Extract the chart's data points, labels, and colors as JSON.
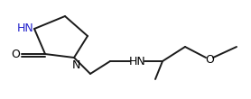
{
  "bg_color": "#ffffff",
  "line_color": "#1a1a1a",
  "text_color": "#000000",
  "hn_color": "#2222cc",
  "label_HN_ring": "HN",
  "label_N_ring": "N",
  "label_O_carbonyl": "O",
  "label_HN_chain": "HN",
  "label_O_ether": "O",
  "figsize": [
    2.78,
    1.1
  ],
  "dpi": 100,
  "lw": 1.4
}
